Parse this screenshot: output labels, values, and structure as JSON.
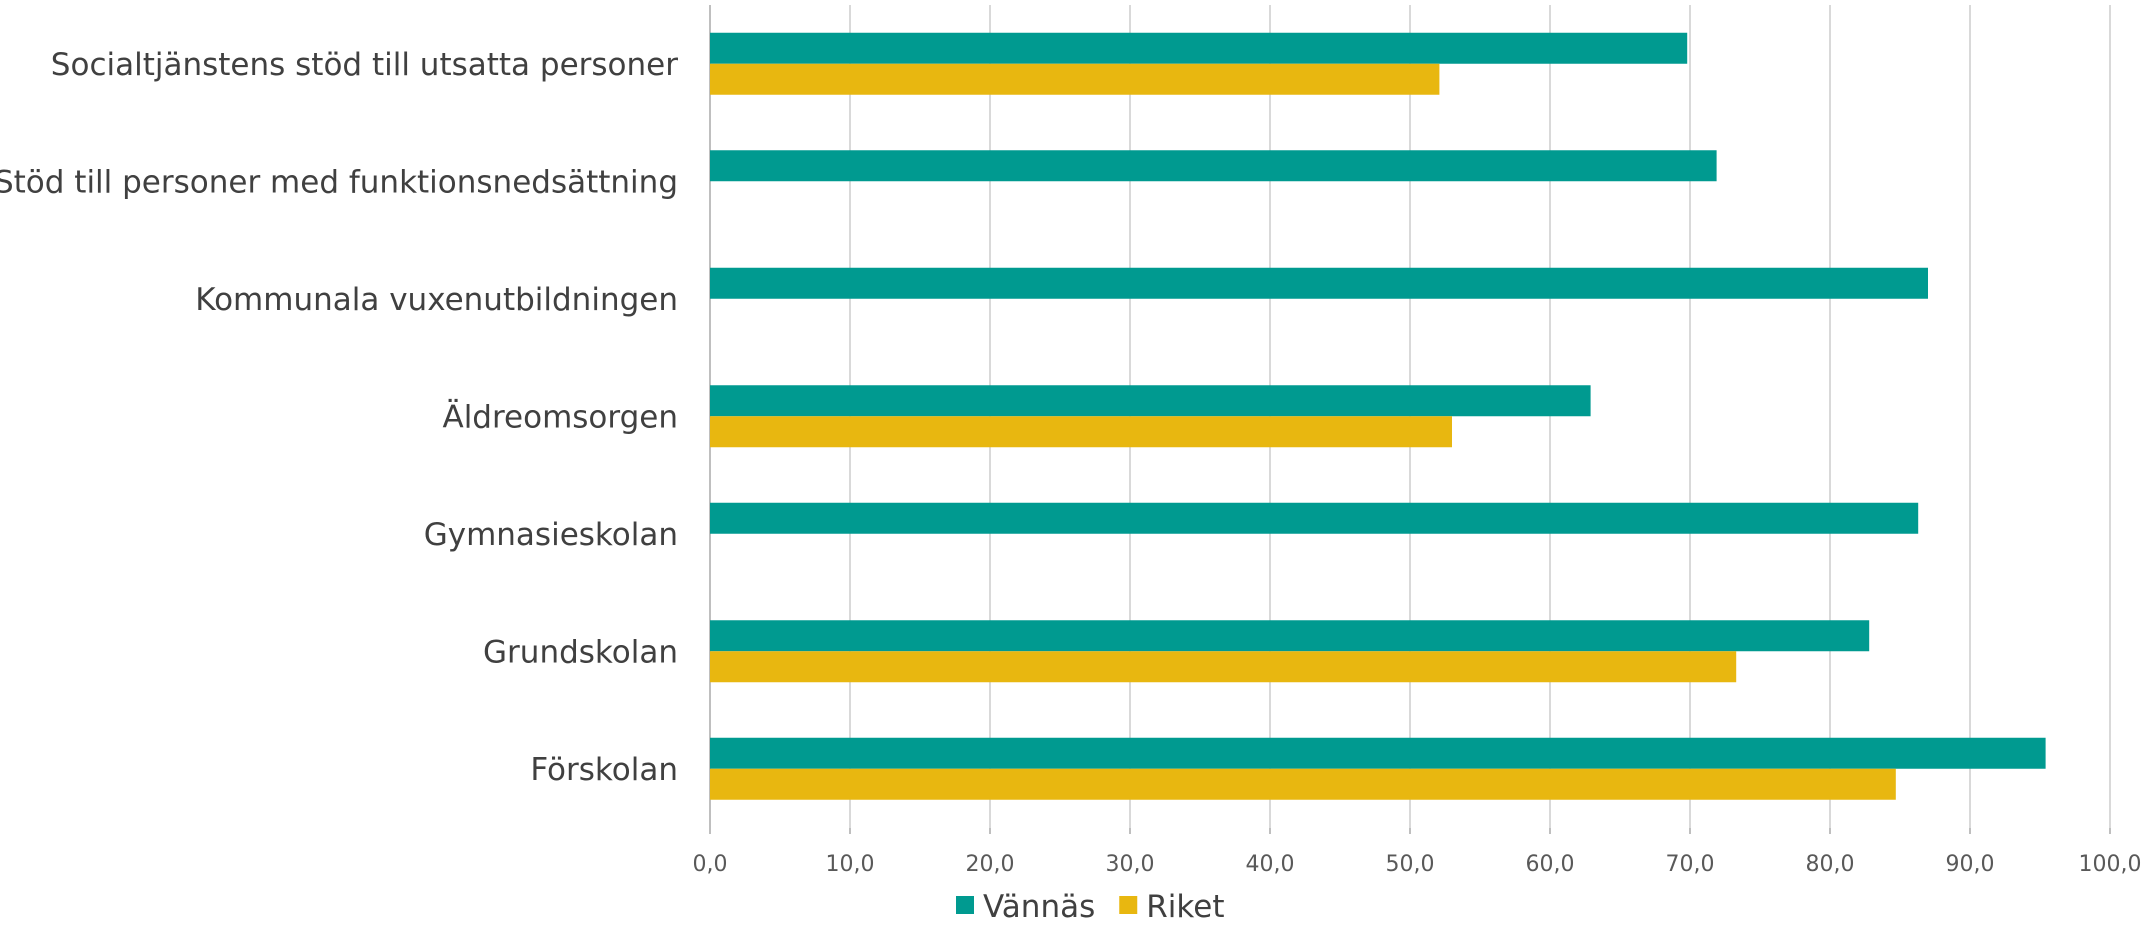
{
  "chart_data": {
    "type": "bar",
    "orientation": "horizontal",
    "categories": [
      "Socialtjänstens stöd till utsatta personer",
      "Stöd till personer med funktionsnedsättning",
      "Kommunala vuxenutbildningen",
      "Äldreomsorgen",
      "Gymnasieskolan",
      "Grundskolan",
      "Förskolan"
    ],
    "series": [
      {
        "name": "Vännäs",
        "color": "#009a90",
        "values": [
          69.8,
          71.9,
          87.0,
          62.9,
          86.3,
          82.8,
          95.4
        ]
      },
      {
        "name": "Riket",
        "color": "#e8b710",
        "values": [
          52.1,
          null,
          null,
          53.0,
          null,
          73.3,
          84.7
        ]
      }
    ],
    "xlim": [
      0,
      100
    ],
    "xticks": [
      "0,0",
      "10,0",
      "20,0",
      "30,0",
      "40,0",
      "50,0",
      "60,0",
      "70,0",
      "80,0",
      "90,0",
      "100,0"
    ],
    "grid": true,
    "legend_position": "bottom",
    "title": "",
    "xlabel": "",
    "ylabel": ""
  }
}
